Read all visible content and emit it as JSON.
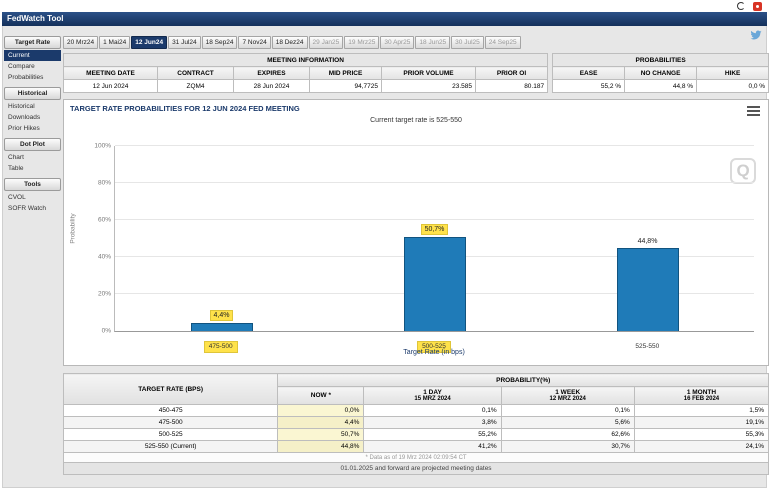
{
  "window": {
    "title": "FedWatch Tool"
  },
  "sidebar": {
    "active_item": "Current",
    "sections": [
      {
        "header": "Target Rate",
        "items": [
          "Current",
          "Compare",
          "Probabilities"
        ]
      },
      {
        "header": "Historical",
        "items": [
          "Historical",
          "Downloads",
          "Prior Hikes"
        ]
      },
      {
        "header": "Dot Plot",
        "items": [
          "Chart",
          "Table"
        ]
      },
      {
        "header": "Tools",
        "items": [
          "CVOL",
          "SOFR Watch"
        ]
      }
    ]
  },
  "tabs": {
    "active": "12 Jun24",
    "items": [
      "20 Mrz24",
      "1 Mai24",
      "12 Jun24",
      "31 Jul24",
      "18 Sep24",
      "7 Nov24",
      "18 Dez24",
      "29 Jan25",
      "19 Mrz25",
      "30 Apr25",
      "18 Jun25",
      "30 Jul25",
      "24 Sep25"
    ]
  },
  "meeting_info": {
    "title": "MEETING INFORMATION",
    "headers": [
      "MEETING DATE",
      "CONTRACT",
      "EXPIRES",
      "MID PRICE",
      "PRIOR VOLUME",
      "PRIOR OI"
    ],
    "values": [
      "12 Jun 2024",
      "ZQM4",
      "28 Jun 2024",
      "94,7725",
      "23.585",
      "80.187"
    ]
  },
  "probabilities_summary": {
    "title": "PROBABILITIES",
    "headers": [
      "EASE",
      "NO CHANGE",
      "HIKE"
    ],
    "values": [
      "55,2 %",
      "44,8 %",
      "0,0 %"
    ]
  },
  "chart_data": {
    "type": "bar",
    "title": "TARGET RATE PROBABILITIES FOR 12 JUN 2024 FED MEETING",
    "subtitle": "Current target rate is 525-550",
    "categories": [
      "475-500",
      "500-525",
      "525-550"
    ],
    "values": [
      4.4,
      50.7,
      44.8
    ],
    "value_labels": [
      "4,4%",
      "50,7%",
      "44,8%"
    ],
    "highlighted_categories": [
      "475-500",
      "500-525"
    ],
    "xlabel": "Target Rate (in bps)",
    "ylabel": "Probability",
    "ylim": [
      0,
      100
    ],
    "yticks": [
      "0%",
      "20%",
      "40%",
      "60%",
      "80%",
      "100%"
    ],
    "grid": true,
    "legend": "none",
    "bar_color": "#1f7bb8",
    "highlight_color": "#ffe24a",
    "watermark": "Q"
  },
  "history_table": {
    "rate_header": "TARGET RATE (BPS)",
    "group_header": "PROBABILITY(%)",
    "columns": [
      {
        "label": "NOW *",
        "date": ""
      },
      {
        "label": "1 DAY",
        "date": "15 MRZ 2024"
      },
      {
        "label": "1 WEEK",
        "date": "12 MRZ 2024"
      },
      {
        "label": "1 MONTH",
        "date": "16 FEB 2024"
      }
    ],
    "rows": [
      {
        "rate": "450-475",
        "values": [
          "0,0%",
          "0,1%",
          "0,1%",
          "1,5%"
        ]
      },
      {
        "rate": "475-500",
        "values": [
          "4,4%",
          "3,8%",
          "5,6%",
          "19,1%"
        ]
      },
      {
        "rate": "500-525",
        "values": [
          "50,7%",
          "55,2%",
          "62,6%",
          "55,3%"
        ]
      },
      {
        "rate": "525-550 (Current)",
        "values": [
          "44,8%",
          "41,2%",
          "30,7%",
          "24,1%"
        ]
      }
    ],
    "footnote": "* Data as of 19 Mrz 2024 02:09:54 CT",
    "note": "01.01.2025 and forward are projected meeting dates"
  }
}
